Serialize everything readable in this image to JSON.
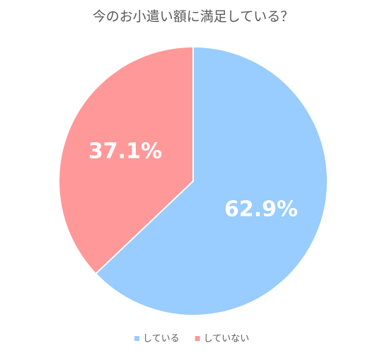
{
  "chart_data": {
    "type": "pie",
    "title": "今のお小遣い額に満足している？",
    "categories": [
      "している",
      "していない"
    ],
    "values": [
      62.9,
      37.1
    ],
    "value_labels": [
      "62.9%",
      "37.1%"
    ],
    "colors": [
      "#99ccff",
      "#ff9999"
    ],
    "legend": "bottom"
  }
}
